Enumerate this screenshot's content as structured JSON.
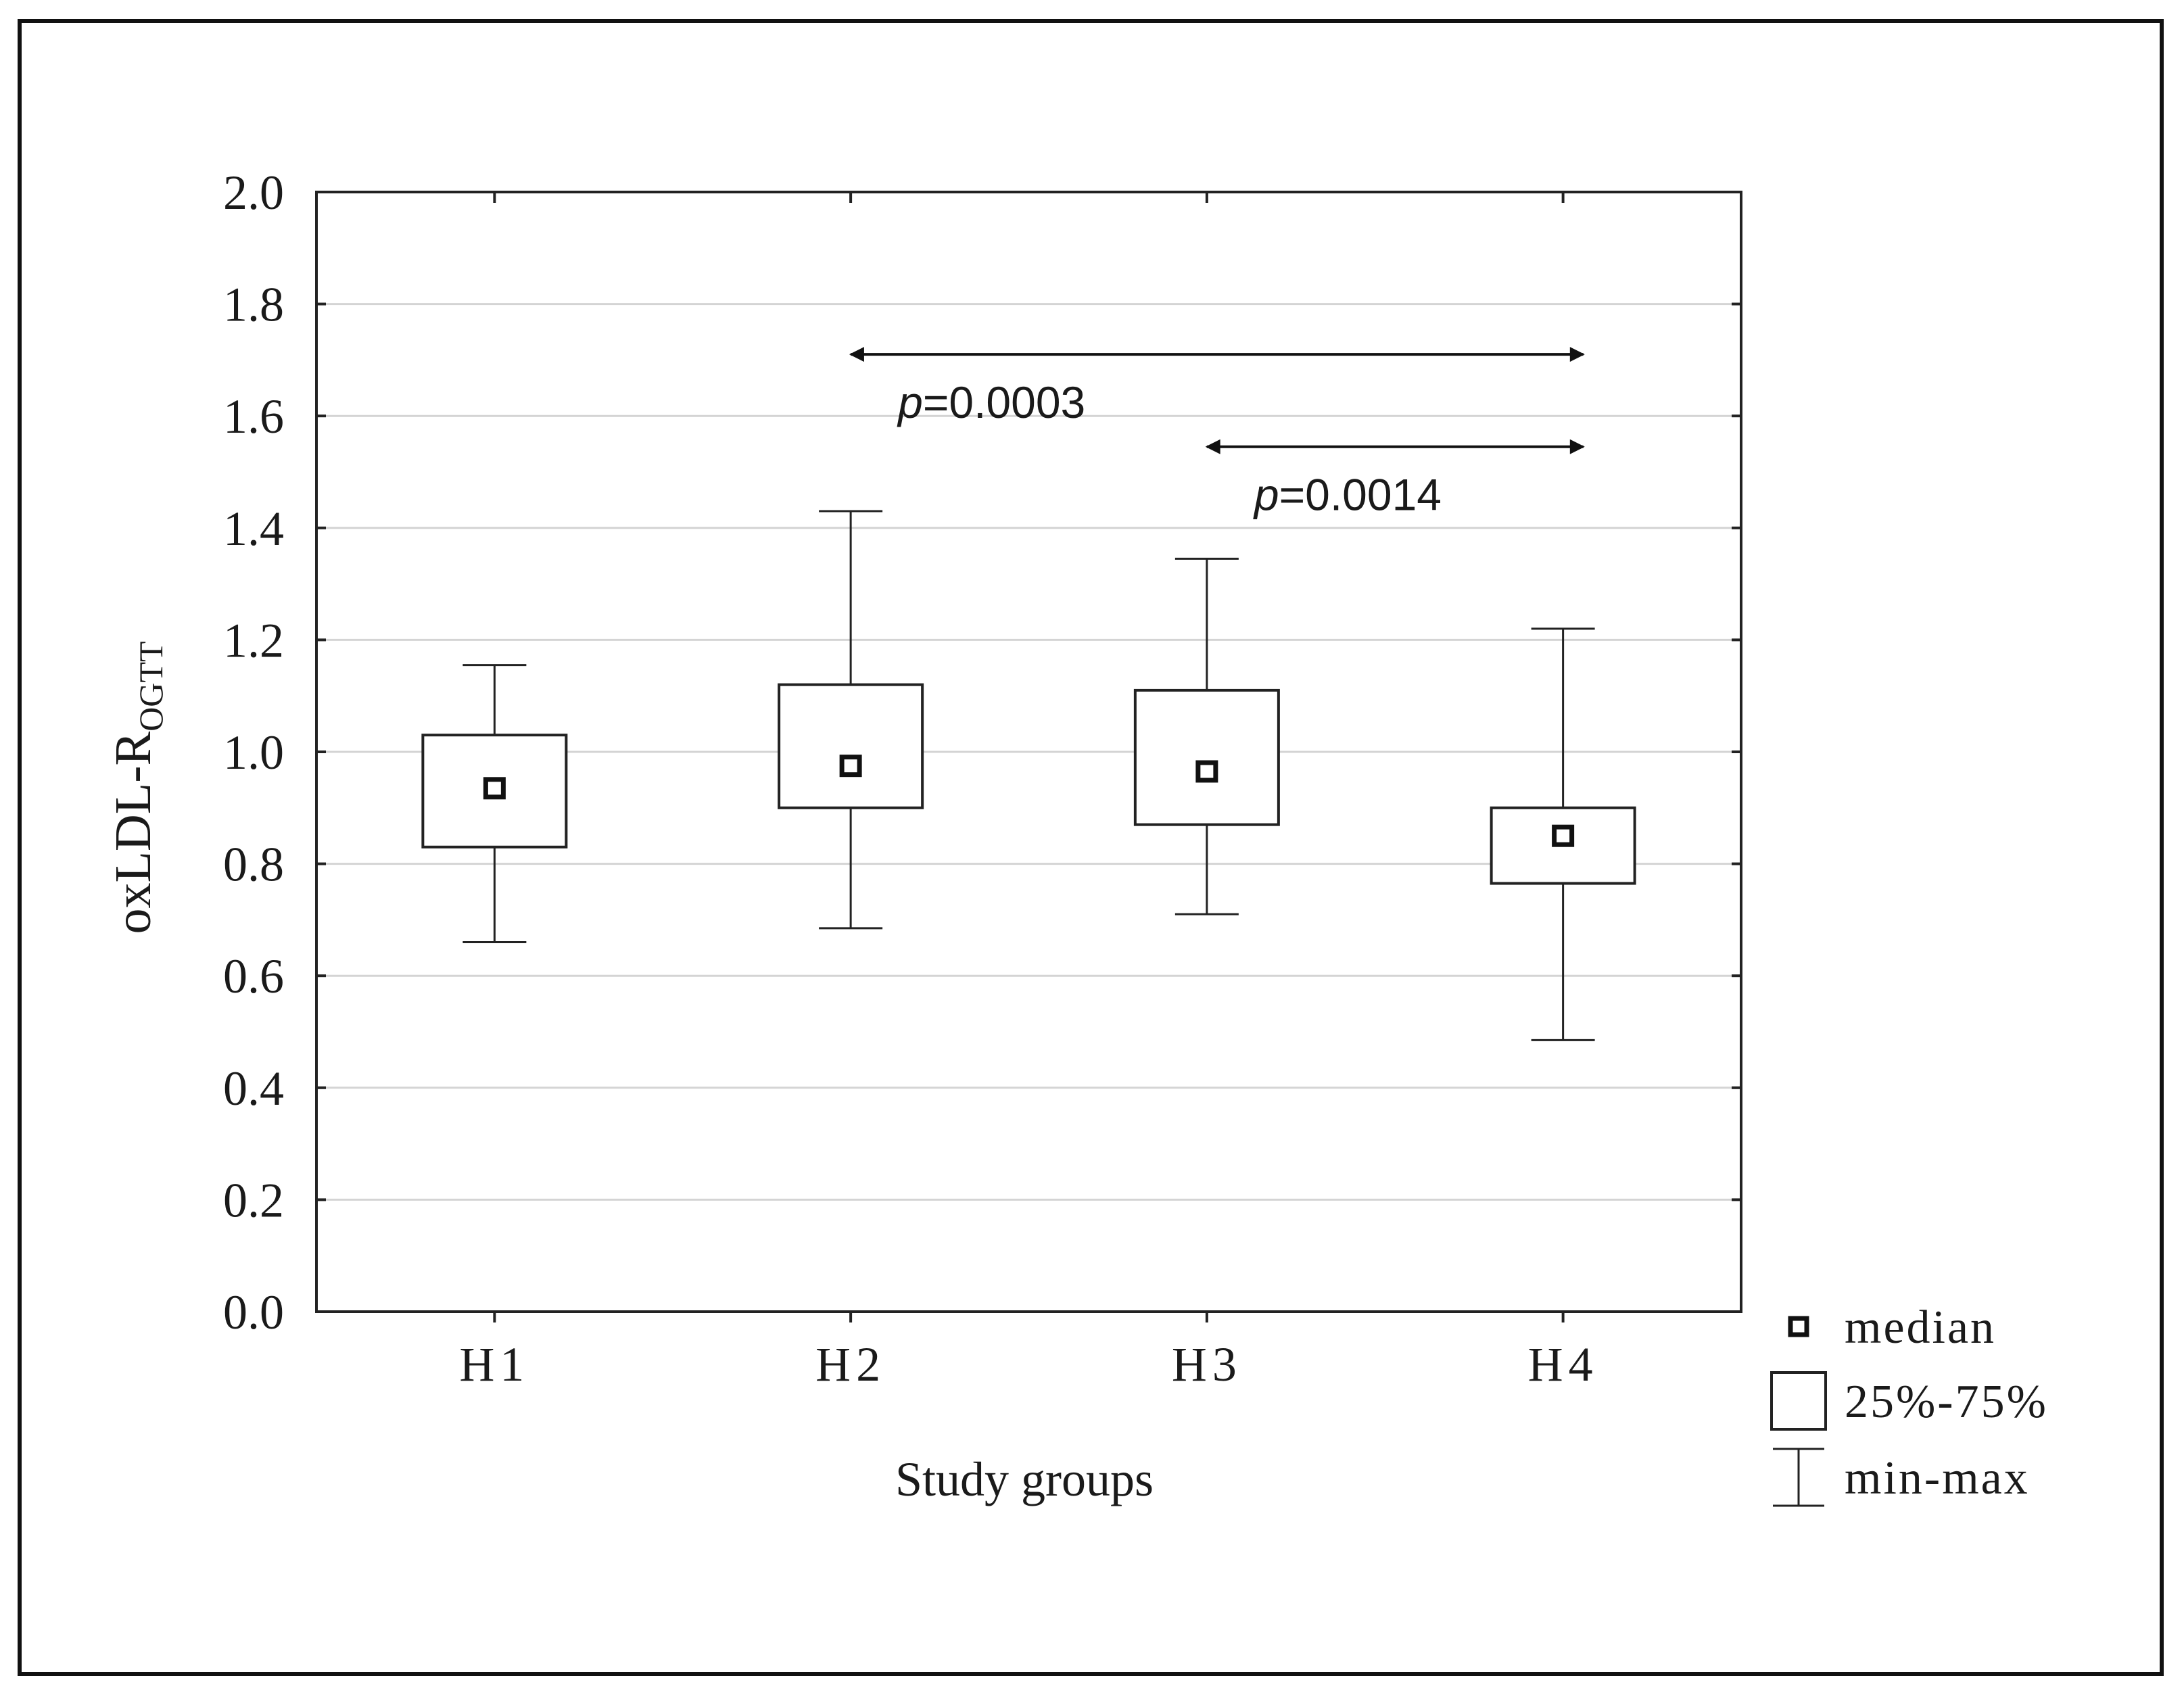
{
  "chart_data": {
    "type": "boxplot",
    "xlabel": "Study groups",
    "ylabel_main": "oxLDL-R",
    "ylabel_sub": "OGTT",
    "ylim": [
      0.0,
      2.0
    ],
    "y_ticks": [
      "0.0",
      "0.2",
      "0.4",
      "0.6",
      "0.8",
      "1.0",
      "1.2",
      "1.4",
      "1.6",
      "1.8",
      "2.0"
    ],
    "grid": true,
    "categories": [
      "H1",
      "H2",
      "H3",
      "H4"
    ],
    "boxes": [
      {
        "group": "H1",
        "min": 0.66,
        "q1": 0.83,
        "median": 0.935,
        "q3": 1.03,
        "max": 1.155
      },
      {
        "group": "H2",
        "min": 0.685,
        "q1": 0.9,
        "median": 0.975,
        "q3": 1.12,
        "max": 1.43
      },
      {
        "group": "H3",
        "min": 0.71,
        "q1": 0.87,
        "median": 0.965,
        "q3": 1.11,
        "max": 1.345
      },
      {
        "group": "H4",
        "min": 0.485,
        "q1": 0.765,
        "median": 0.85,
        "q3": 0.9,
        "max": 1.22
      }
    ],
    "comparisons": [
      {
        "from": "H2",
        "to": "H4",
        "y": 1.71,
        "p_prefix": "p",
        "p_value": "=0.0003"
      },
      {
        "from": "H3",
        "to": "H4",
        "y": 1.545,
        "p_prefix": "p",
        "p_value": "=0.0014"
      }
    ],
    "legend": {
      "position": "bottom-right outside",
      "items": [
        {
          "symbol": "median-square",
          "label": "median"
        },
        {
          "symbol": "box",
          "label": "25%-75%"
        },
        {
          "symbol": "whisker",
          "label": "min-max"
        }
      ]
    }
  }
}
